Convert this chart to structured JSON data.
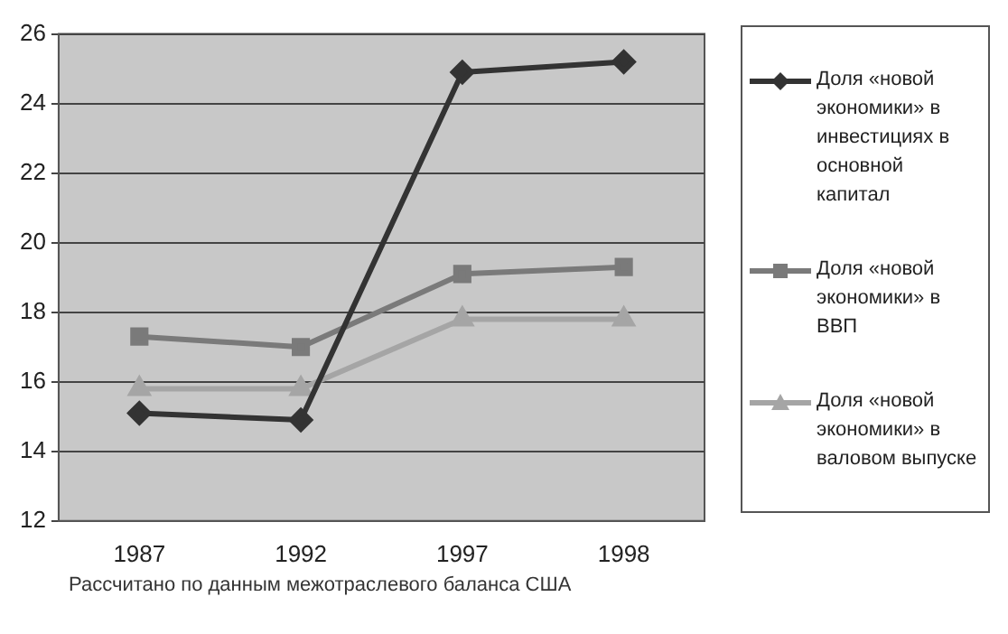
{
  "chart_data": {
    "type": "line",
    "categories": [
      "1987",
      "1992",
      "1997",
      "1998"
    ],
    "series": [
      {
        "name": "Доля «новой экономики» в инвестициях в основной капитал",
        "color": "#333333",
        "marker": "diamond",
        "values": [
          15.1,
          14.9,
          24.9,
          25.2
        ]
      },
      {
        "name": "Доля «новой экономики» в ВВП",
        "color": "#7a7a7a",
        "marker": "square",
        "values": [
          17.3,
          17.0,
          19.1,
          19.3
        ]
      },
      {
        "name": "Доля «новой экономики» в валовом выпуске",
        "color": "#a5a5a5",
        "marker": "triangle",
        "values": [
          15.8,
          15.8,
          17.8,
          17.8
        ]
      }
    ],
    "ylim": [
      12,
      26
    ],
    "yticks": [
      12,
      14,
      16,
      18,
      20,
      22,
      24,
      26
    ],
    "grid": "y",
    "legend": "right",
    "line_style": "solid",
    "annotations": [
      "Рассчитано по данным межотраслевого баланса США"
    ]
  }
}
